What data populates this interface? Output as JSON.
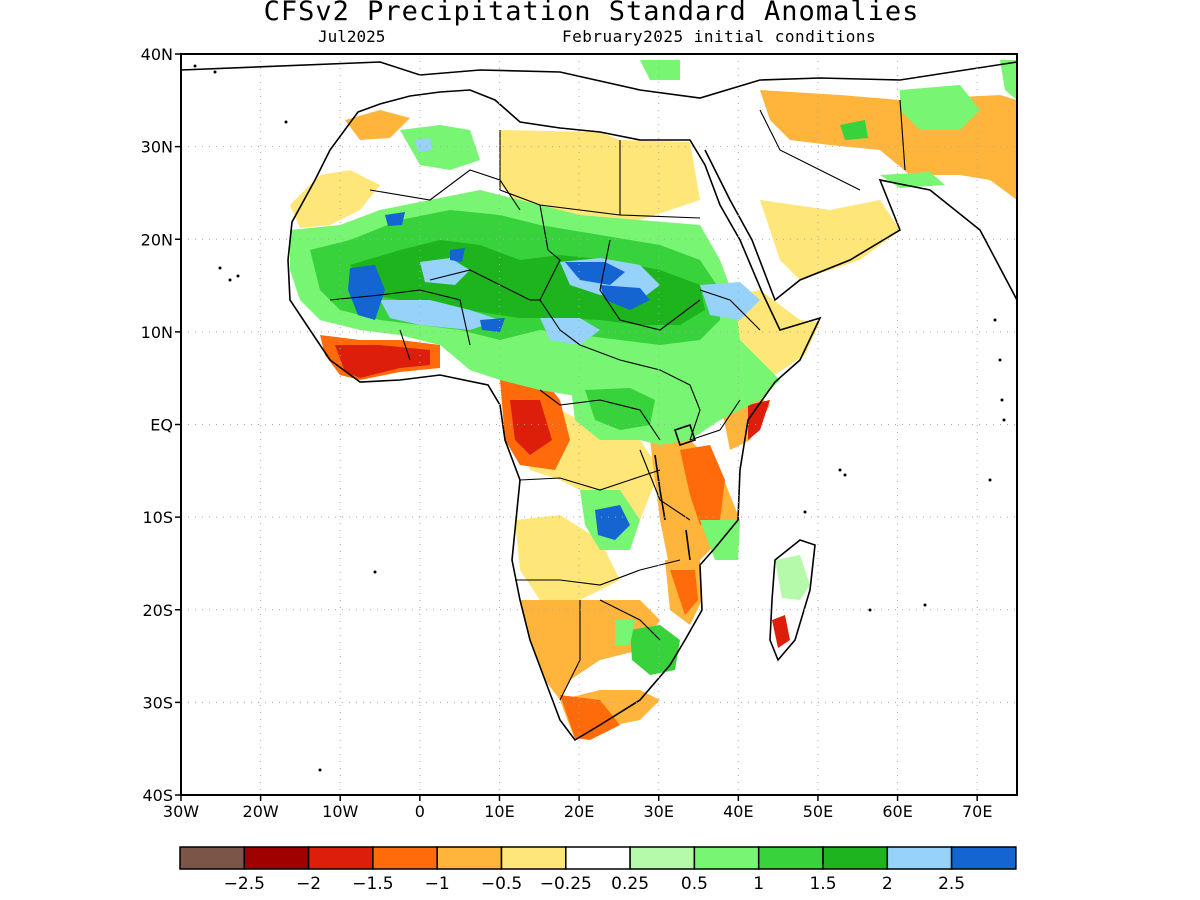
{
  "header": {
    "title": "CFSv2 Precipitation Standard Anomalies",
    "target_month": "Jul2025",
    "initial_conditions": "February2025 initial conditions"
  },
  "axes": {
    "lat_ticks": [
      "40N",
      "30N",
      "20N",
      "10N",
      "EQ",
      "10S",
      "20S",
      "30S",
      "40S"
    ],
    "lon_ticks": [
      "30W",
      "20W",
      "10W",
      "0",
      "10E",
      "20E",
      "30E",
      "40E",
      "50E",
      "60E",
      "70E"
    ],
    "lat_range": [
      -40,
      40
    ],
    "lon_range": [
      -30,
      75
    ],
    "grid": "dotted"
  },
  "colorbar": {
    "colors": [
      "#7a5548",
      "#a00000",
      "#dc1e0a",
      "#ff6a0a",
      "#ffb43c",
      "#ffe678",
      "#ffffff",
      "#b4faaa",
      "#78f573",
      "#37d23c",
      "#1eb41e",
      "#96d2fa",
      "#1464d2"
    ],
    "labels": [
      "−2.5",
      "−2",
      "−1.5",
      "−1",
      "−0.5",
      "−0.25",
      "0.25",
      "0.5",
      "1",
      "1.5",
      "2",
      "2.5"
    ]
  },
  "map": {
    "region": "Africa",
    "colors": {
      "wet_strong": "#1464d2",
      "wet_light_blue": "#96d2fa",
      "wet_green_dark": "#1eb41e",
      "wet_green": "#37d23c",
      "wet_green_light": "#78f573",
      "wet_pale": "#b4faaa",
      "dry_yellow": "#ffe678",
      "dry_orange_light": "#ffb43c",
      "dry_orange": "#ff6a0a",
      "dry_red": "#dc1e0a",
      "neutral": "#ffffff",
      "coast": "#000000",
      "grid": "#aaaaaa"
    }
  }
}
